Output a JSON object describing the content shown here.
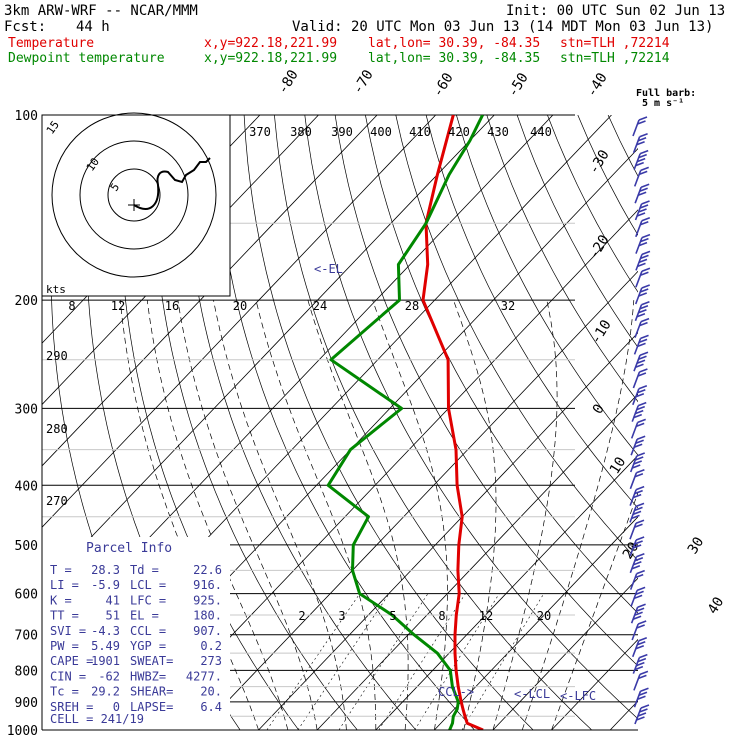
{
  "header": {
    "model": "3km ARW-WRF -- NCAR/MMM",
    "init": "Init: 00 UTC Sun 02 Jun 13",
    "fcst_label": "Fcst:",
    "fcst_value": "44 h",
    "valid": "Valid: 20 UTC Mon 03 Jun 13 (14 MDT Mon 03 Jun 13)",
    "temp_label": "Temperature",
    "dew_label": "Dewpoint temperature",
    "xy": "x,y=922.18,221.99",
    "latlon": "lat,lon= 30.39, -84.35",
    "stn": "stn=TLH ,72214"
  },
  "barb_legend": {
    "title": "Full barb:",
    "value": "5 m s⁻¹"
  },
  "colors": {
    "temperature": "#e00000",
    "dewpoint": "#008800",
    "barbs": "#3a3aa8",
    "isobar": "#000000"
  },
  "chart_data": {
    "type": "line",
    "pressure_levels": [
      "100",
      "200",
      "300",
      "400",
      "500",
      "600",
      "700",
      "800",
      "900",
      "1000"
    ],
    "isotherm_labels": [
      "-80",
      "-70",
      "-60",
      "-50",
      "-40",
      "-30",
      "-20",
      "-10",
      "0",
      "10",
      "20",
      "30",
      "40"
    ],
    "theta_labels": [
      "370",
      "380",
      "390",
      "400",
      "410",
      "420",
      "430",
      "440"
    ],
    "mixing_ratio_labels": [
      "2",
      "3",
      "5",
      "8",
      "12",
      "20"
    ],
    "hodo_speed_labels": [
      "8",
      "12",
      "16",
      "20",
      "24",
      "28",
      "32"
    ],
    "hodo_unit": "kts",
    "hodo_ring_labels": [
      "5",
      "10",
      "15"
    ],
    "height_labels": [
      "290",
      "280",
      "270"
    ],
    "annotations": {
      "el": "<-EL",
      "lcl": "<-LCL",
      "lfc": "<-LFC",
      "ccl": "CCL->"
    },
    "series": [
      {
        "name": "Temperature",
        "points": [
          [
            1000,
            28.3
          ],
          [
            975,
            24.5
          ],
          [
            950,
            23
          ],
          [
            925,
            21.5
          ],
          [
            900,
            20
          ],
          [
            850,
            17
          ],
          [
            800,
            14
          ],
          [
            750,
            11
          ],
          [
            700,
            8
          ],
          [
            650,
            5
          ],
          [
            600,
            2
          ],
          [
            550,
            -2
          ],
          [
            500,
            -6
          ],
          [
            450,
            -10
          ],
          [
            400,
            -16
          ],
          [
            350,
            -22
          ],
          [
            300,
            -30
          ],
          [
            250,
            -38
          ],
          [
            200,
            -52
          ],
          [
            175,
            -57
          ],
          [
            150,
            -64
          ],
          [
            125,
            -70
          ],
          [
            110,
            -74
          ],
          [
            100,
            -77
          ]
        ]
      },
      {
        "name": "Dewpoint temperature",
        "points": [
          [
            1000,
            22.6
          ],
          [
            975,
            22
          ],
          [
            950,
            21
          ],
          [
            925,
            20.5
          ],
          [
            900,
            19.5
          ],
          [
            850,
            16
          ],
          [
            800,
            13
          ],
          [
            750,
            8
          ],
          [
            700,
            1
          ],
          [
            650,
            -6
          ],
          [
            600,
            -15
          ],
          [
            550,
            -20
          ],
          [
            500,
            -24
          ],
          [
            450,
            -26
          ],
          [
            400,
            -38
          ],
          [
            350,
            -40
          ],
          [
            300,
            -38
          ],
          [
            250,
            -58
          ],
          [
            200,
            -56
          ],
          [
            175,
            -62
          ],
          [
            150,
            -64
          ],
          [
            125,
            -68
          ],
          [
            110,
            -70
          ],
          [
            100,
            -72
          ]
        ]
      }
    ]
  },
  "parcel_info": {
    "title": "Parcel Info",
    "rows": [
      [
        "T  =",
        "28.3",
        "Td =",
        "22.6"
      ],
      [
        "LI =",
        "-5.9",
        "LCL =",
        "916."
      ],
      [
        "K  =",
        "41",
        "LFC =",
        "925."
      ],
      [
        "TT =",
        "51",
        "EL  =",
        "180."
      ],
      [
        "SVI =",
        "-4.3",
        "CCL =",
        "907."
      ],
      [
        "PW =",
        "5.49",
        "YGP =",
        "0.2"
      ],
      [
        "CAPE =",
        "1901",
        "SWEAT=",
        "273"
      ],
      [
        "CIN =",
        "-62",
        "HWBZ=",
        "4277."
      ],
      [
        "Tc =",
        "29.2",
        "SHEAR=",
        "20."
      ],
      [
        "SREH =",
        "0",
        "LAPSE=",
        "6.4"
      ]
    ],
    "cell": "CELL = 241/19"
  }
}
